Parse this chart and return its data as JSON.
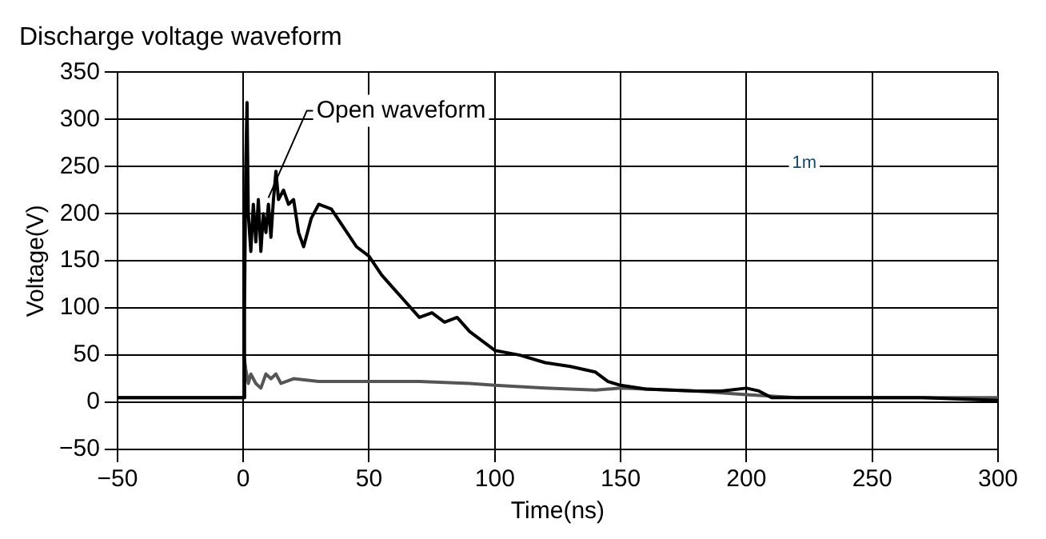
{
  "chart_data": {
    "type": "line",
    "title": "Discharge voltage waveform",
    "xlabel": "Time(ns)",
    "ylabel": "Voltage(V)",
    "xlim": [
      -50,
      300
    ],
    "xticks": [
      -50,
      0,
      50,
      100,
      150,
      200,
      250,
      300
    ],
    "ylim": [
      -50,
      350
    ],
    "yticks": [
      -50,
      0,
      50,
      100,
      150,
      200,
      250,
      300,
      350
    ],
    "grid": true,
    "legend": false,
    "marker": "none",
    "line_style": "solid",
    "annotations": [
      "1m"
    ],
    "series": [
      {
        "name": "Open waveform",
        "color": "#000000",
        "x": [
          -50,
          -1,
          0,
          0.5,
          1,
          1.5,
          2,
          3,
          4,
          5,
          6,
          7,
          8,
          9,
          10,
          11,
          12,
          13,
          14,
          16,
          18,
          20,
          22,
          24,
          27,
          30,
          35,
          40,
          45,
          50,
          55,
          60,
          65,
          70,
          75,
          80,
          85,
          90,
          95,
          100,
          110,
          120,
          130,
          140,
          145,
          150,
          160,
          180,
          190,
          200,
          205,
          210,
          230,
          250,
          270,
          300
        ],
        "values": [
          5,
          5,
          5,
          100,
          250,
          318,
          200,
          160,
          210,
          170,
          215,
          160,
          200,
          180,
          210,
          175,
          215,
          245,
          215,
          225,
          210,
          215,
          180,
          165,
          195,
          210,
          205,
          185,
          165,
          155,
          135,
          120,
          105,
          90,
          95,
          85,
          90,
          75,
          65,
          55,
          50,
          42,
          38,
          32,
          22,
          18,
          14,
          12,
          12,
          15,
          12,
          5,
          5,
          5,
          5,
          2
        ]
      },
      {
        "color": "#555555",
        "x": [
          -50,
          0,
          0.5,
          1,
          2,
          3,
          5,
          7,
          9,
          11,
          13,
          15,
          20,
          30,
          50,
          70,
          90,
          100,
          120,
          140,
          150,
          180,
          200,
          220,
          250,
          300
        ],
        "values": [
          5,
          5,
          45,
          35,
          20,
          30,
          20,
          15,
          30,
          25,
          30,
          20,
          25,
          22,
          22,
          22,
          20,
          18,
          15,
          13,
          15,
          12,
          8,
          5,
          5,
          5
        ]
      }
    ]
  }
}
